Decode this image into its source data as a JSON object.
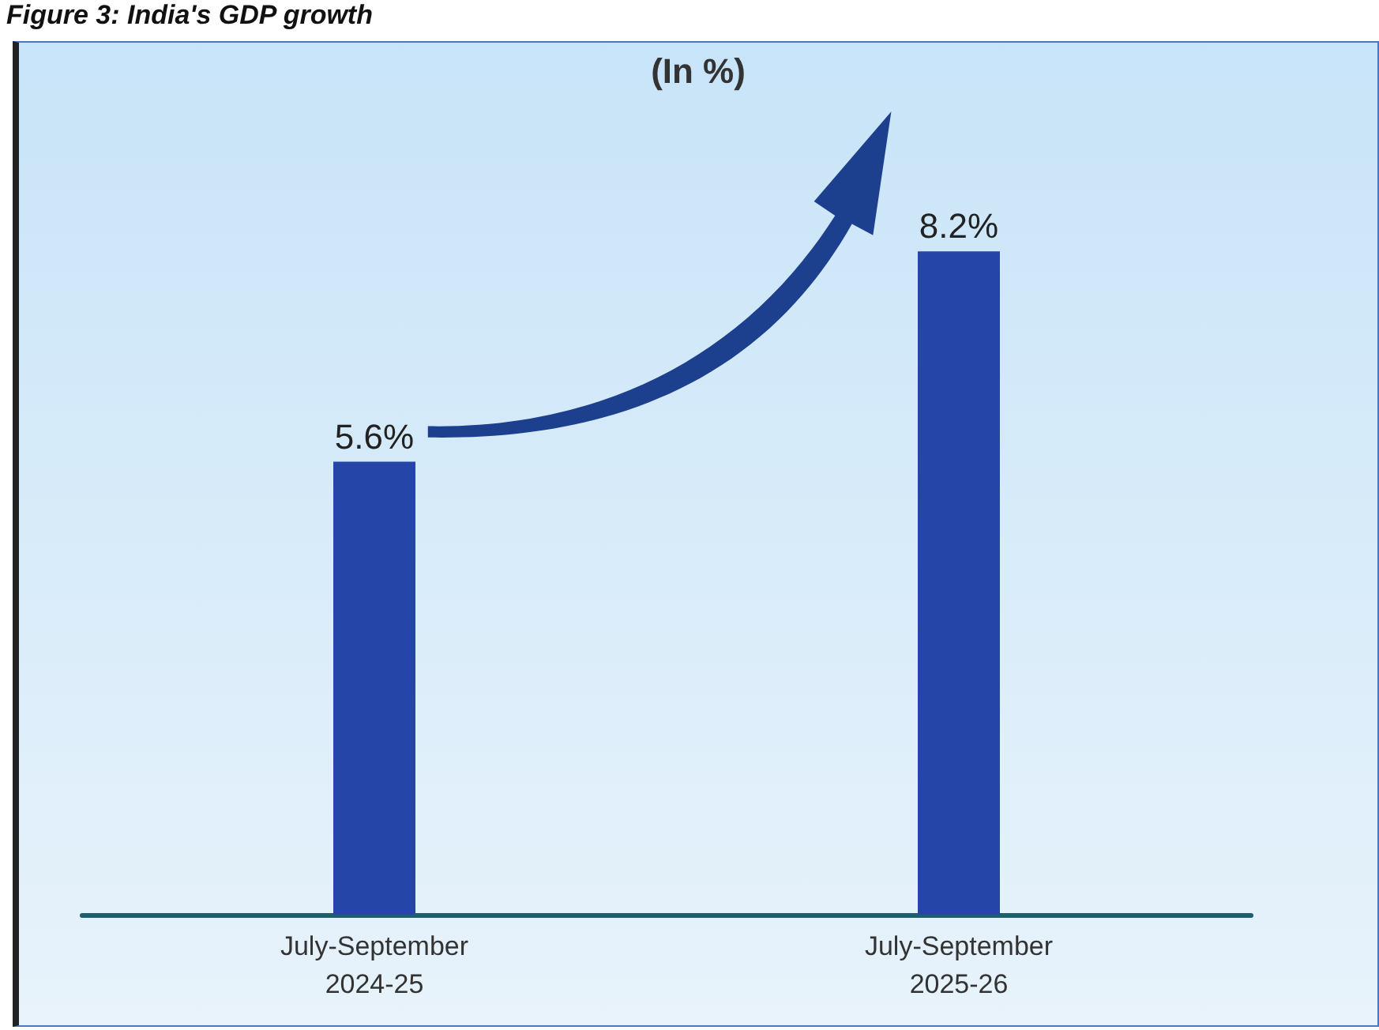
{
  "chart_data": {
    "type": "bar",
    "title": "Figure 3: India's GDP growth",
    "subtitle": "(In %)",
    "categories": [
      "July-September\n2024-25",
      "July-September\n2025-26"
    ],
    "values": [
      5.6,
      8.2
    ],
    "color": "#2546a8",
    "value_labels": [
      "5.6%",
      "8.2%"
    ]
  }
}
